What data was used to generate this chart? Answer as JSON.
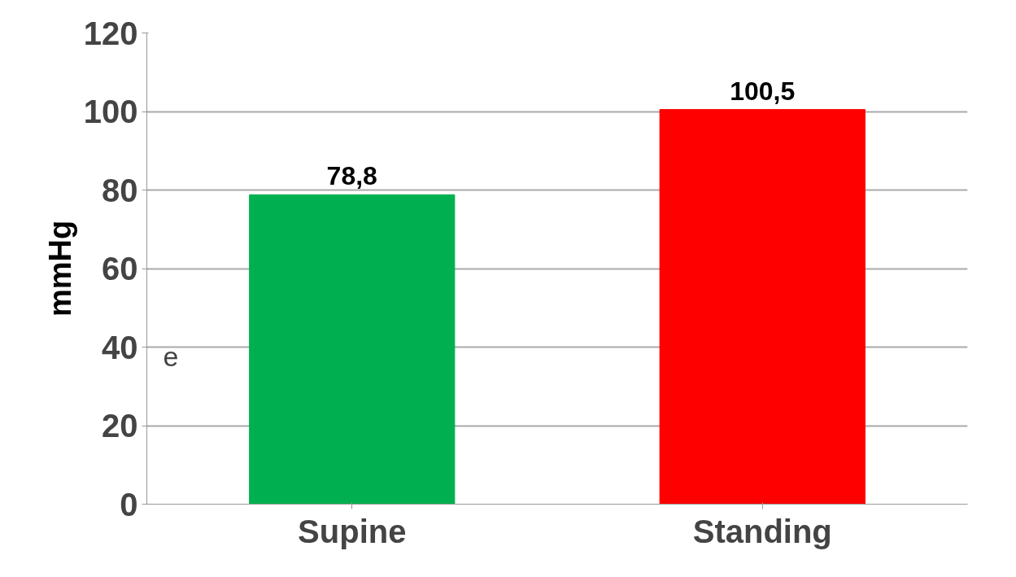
{
  "chart_data": {
    "type": "bar",
    "ylabel": "mmHg",
    "categories": [
      "Supine",
      "Standing"
    ],
    "values": [
      78.8,
      100.5
    ],
    "colors": [
      "#00b050",
      "#ff0000"
    ],
    "value_labels": [
      "78,8",
      "100,5"
    ],
    "ylim": [
      0,
      120
    ],
    "yticks": [
      0,
      20,
      40,
      60,
      80,
      100,
      120
    ],
    "grid": "y",
    "annotations": [
      "e"
    ]
  }
}
